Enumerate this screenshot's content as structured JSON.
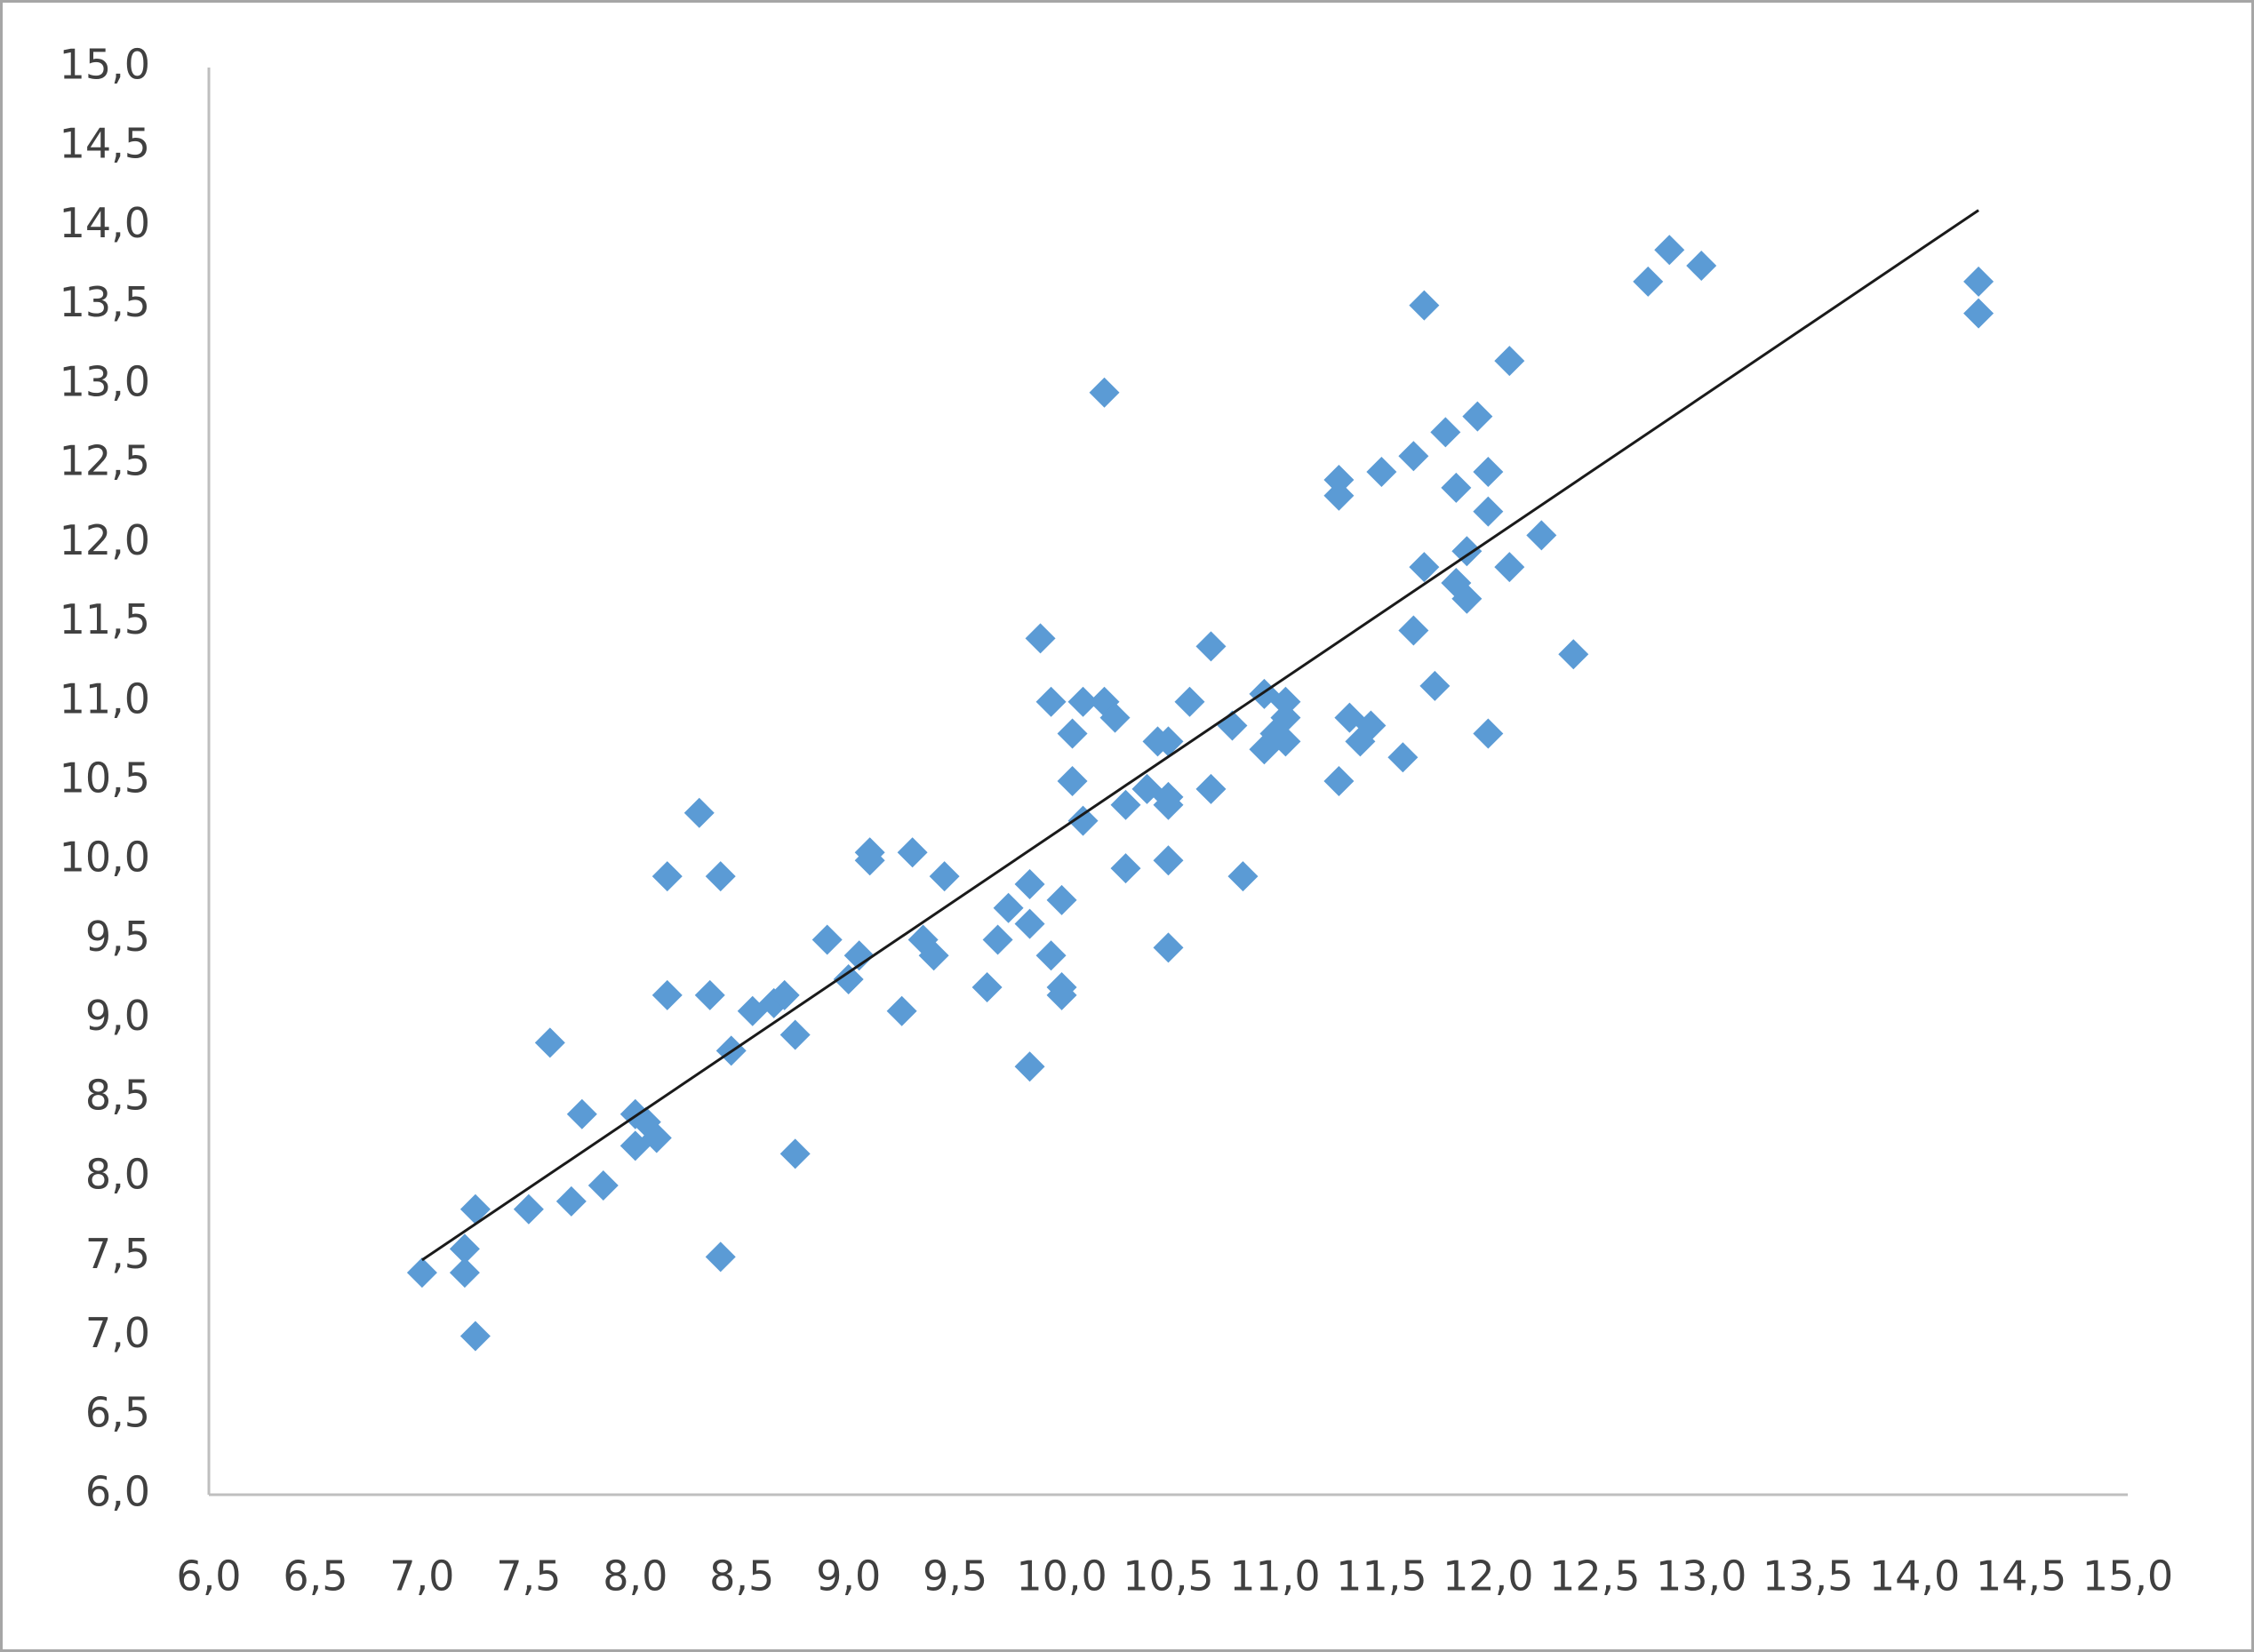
{
  "chart_data": {
    "type": "scatter",
    "series": [
      {
        "color": "#5b9bd5",
        "x": [
          7.0,
          7.2,
          7.2,
          7.25,
          7.25,
          7.5,
          7.6,
          7.7,
          7.75,
          7.85,
          8.0,
          8.0,
          8.1,
          8.05,
          8.15,
          8.15,
          8.3,
          8.35,
          8.4,
          8.4,
          8.45,
          8.55,
          8.65,
          8.7,
          8.75,
          8.75,
          8.9,
          9.0,
          9.05,
          9.1,
          9.1,
          9.25,
          9.3,
          9.35,
          9.4,
          9.45,
          9.65,
          9.7,
          9.75,
          9.85,
          9.85,
          9.85,
          9.9,
          9.95,
          10.0,
          10.0,
          10.0,
          9.95,
          10.05,
          10.05,
          10.1,
          10.1,
          10.2,
          10.2,
          10.25,
          10.3,
          10.3,
          10.4,
          10.45,
          10.5,
          10.5,
          10.5,
          10.5,
          10.5,
          10.6,
          10.7,
          10.7,
          10.8,
          10.85,
          10.95,
          10.95,
          11.0,
          11.05,
          11.05,
          11.05,
          11.3,
          11.3,
          11.3,
          11.35,
          11.4,
          11.45,
          11.5,
          11.6,
          11.65,
          11.65,
          11.7,
          11.7,
          11.75,
          11.8,
          11.85,
          11.85,
          11.9,
          11.9,
          11.95,
          12.0,
          12.0,
          12.0,
          12.1,
          12.1,
          12.25,
          12.4,
          12.75,
          12.85,
          13.0,
          14.3,
          14.3
        ],
        "values": [
          7.4,
          7.55,
          7.4,
          7.0,
          7.8,
          7.8,
          8.85,
          7.85,
          8.4,
          7.95,
          8.4,
          8.2,
          8.25,
          8.35,
          9.15,
          9.9,
          10.3,
          9.15,
          9.9,
          7.5,
          8.8,
          9.05,
          9.1,
          9.15,
          8.15,
          8.9,
          9.5,
          9.25,
          9.4,
          10.0,
          10.05,
          9.05,
          10.05,
          9.5,
          9.4,
          9.9,
          9.2,
          9.5,
          9.7,
          9.6,
          9.85,
          8.7,
          11.4,
          9.4,
          9.15,
          9.2,
          9.75,
          11.0,
          10.5,
          10.8,
          10.25,
          11.0,
          12.95,
          11.0,
          10.9,
          10.35,
          9.95,
          10.45,
          10.75,
          10.4,
          10.0,
          9.45,
          10.75,
          10.35,
          11.0,
          11.35,
          10.45,
          10.85,
          9.9,
          10.7,
          11.05,
          10.8,
          11.0,
          10.9,
          10.75,
          10.5,
          12.3,
          12.4,
          10.9,
          10.75,
          10.85,
          12.45,
          10.65,
          11.45,
          12.55,
          11.85,
          13.5,
          11.1,
          12.7,
          12.35,
          11.75,
          11.95,
          11.65,
          12.8,
          12.2,
          12.45,
          10.8,
          11.85,
          13.15,
          12.05,
          11.3,
          13.65,
          13.85,
          13.75,
          13.65,
          13.45
        ]
      }
    ],
    "trendline": {
      "x": [
        7.0,
        14.3
      ],
      "y": [
        7.48,
        14.1
      ],
      "color": "#1a1a1a"
    },
    "xlim": [
      6.0,
      15.0
    ],
    "xticks": [
      {
        "value": 6.0,
        "label": "6,0"
      },
      {
        "value": 6.5,
        "label": "6,5"
      },
      {
        "value": 7.0,
        "label": "7,0"
      },
      {
        "value": 7.5,
        "label": "7,5"
      },
      {
        "value": 8.0,
        "label": "8,0"
      },
      {
        "value": 8.5,
        "label": "8,5"
      },
      {
        "value": 9.0,
        "label": "9,0"
      },
      {
        "value": 9.5,
        "label": "9,5"
      },
      {
        "value": 10.0,
        "label": "10,0"
      },
      {
        "value": 10.5,
        "label": "10,5"
      },
      {
        "value": 11.0,
        "label": "11,0"
      },
      {
        "value": 11.5,
        "label": "11,5"
      },
      {
        "value": 12.0,
        "label": "12,0"
      },
      {
        "value": 12.5,
        "label": "12,5"
      },
      {
        "value": 13.0,
        "label": "13,0"
      },
      {
        "value": 13.5,
        "label": "13,5"
      },
      {
        "value": 14.0,
        "label": "14,0"
      },
      {
        "value": 14.5,
        "label": "14,5"
      },
      {
        "value": 15.0,
        "label": "15,0"
      }
    ],
    "ylim": [
      6.0,
      15.0
    ],
    "yticks": [
      {
        "value": 6.0,
        "label": "6,0"
      },
      {
        "value": 6.5,
        "label": "6,5"
      },
      {
        "value": 7.0,
        "label": "7,0"
      },
      {
        "value": 7.5,
        "label": "7,5"
      },
      {
        "value": 8.0,
        "label": "8,0"
      },
      {
        "value": 8.5,
        "label": "8,5"
      },
      {
        "value": 9.0,
        "label": "9,0"
      },
      {
        "value": 9.5,
        "label": "9,5"
      },
      {
        "value": 10.0,
        "label": "10,0"
      },
      {
        "value": 10.5,
        "label": "10,5"
      },
      {
        "value": 11.0,
        "label": "11,0"
      },
      {
        "value": 11.5,
        "label": "11,5"
      },
      {
        "value": 12.0,
        "label": "12,0"
      },
      {
        "value": 12.5,
        "label": "12,5"
      },
      {
        "value": 13.0,
        "label": "13,0"
      },
      {
        "value": 13.5,
        "label": "13,5"
      },
      {
        "value": 14.0,
        "label": "14,0"
      },
      {
        "value": 14.5,
        "label": "14,5"
      },
      {
        "value": 15.0,
        "label": "15,0"
      }
    ],
    "grid": false
  }
}
